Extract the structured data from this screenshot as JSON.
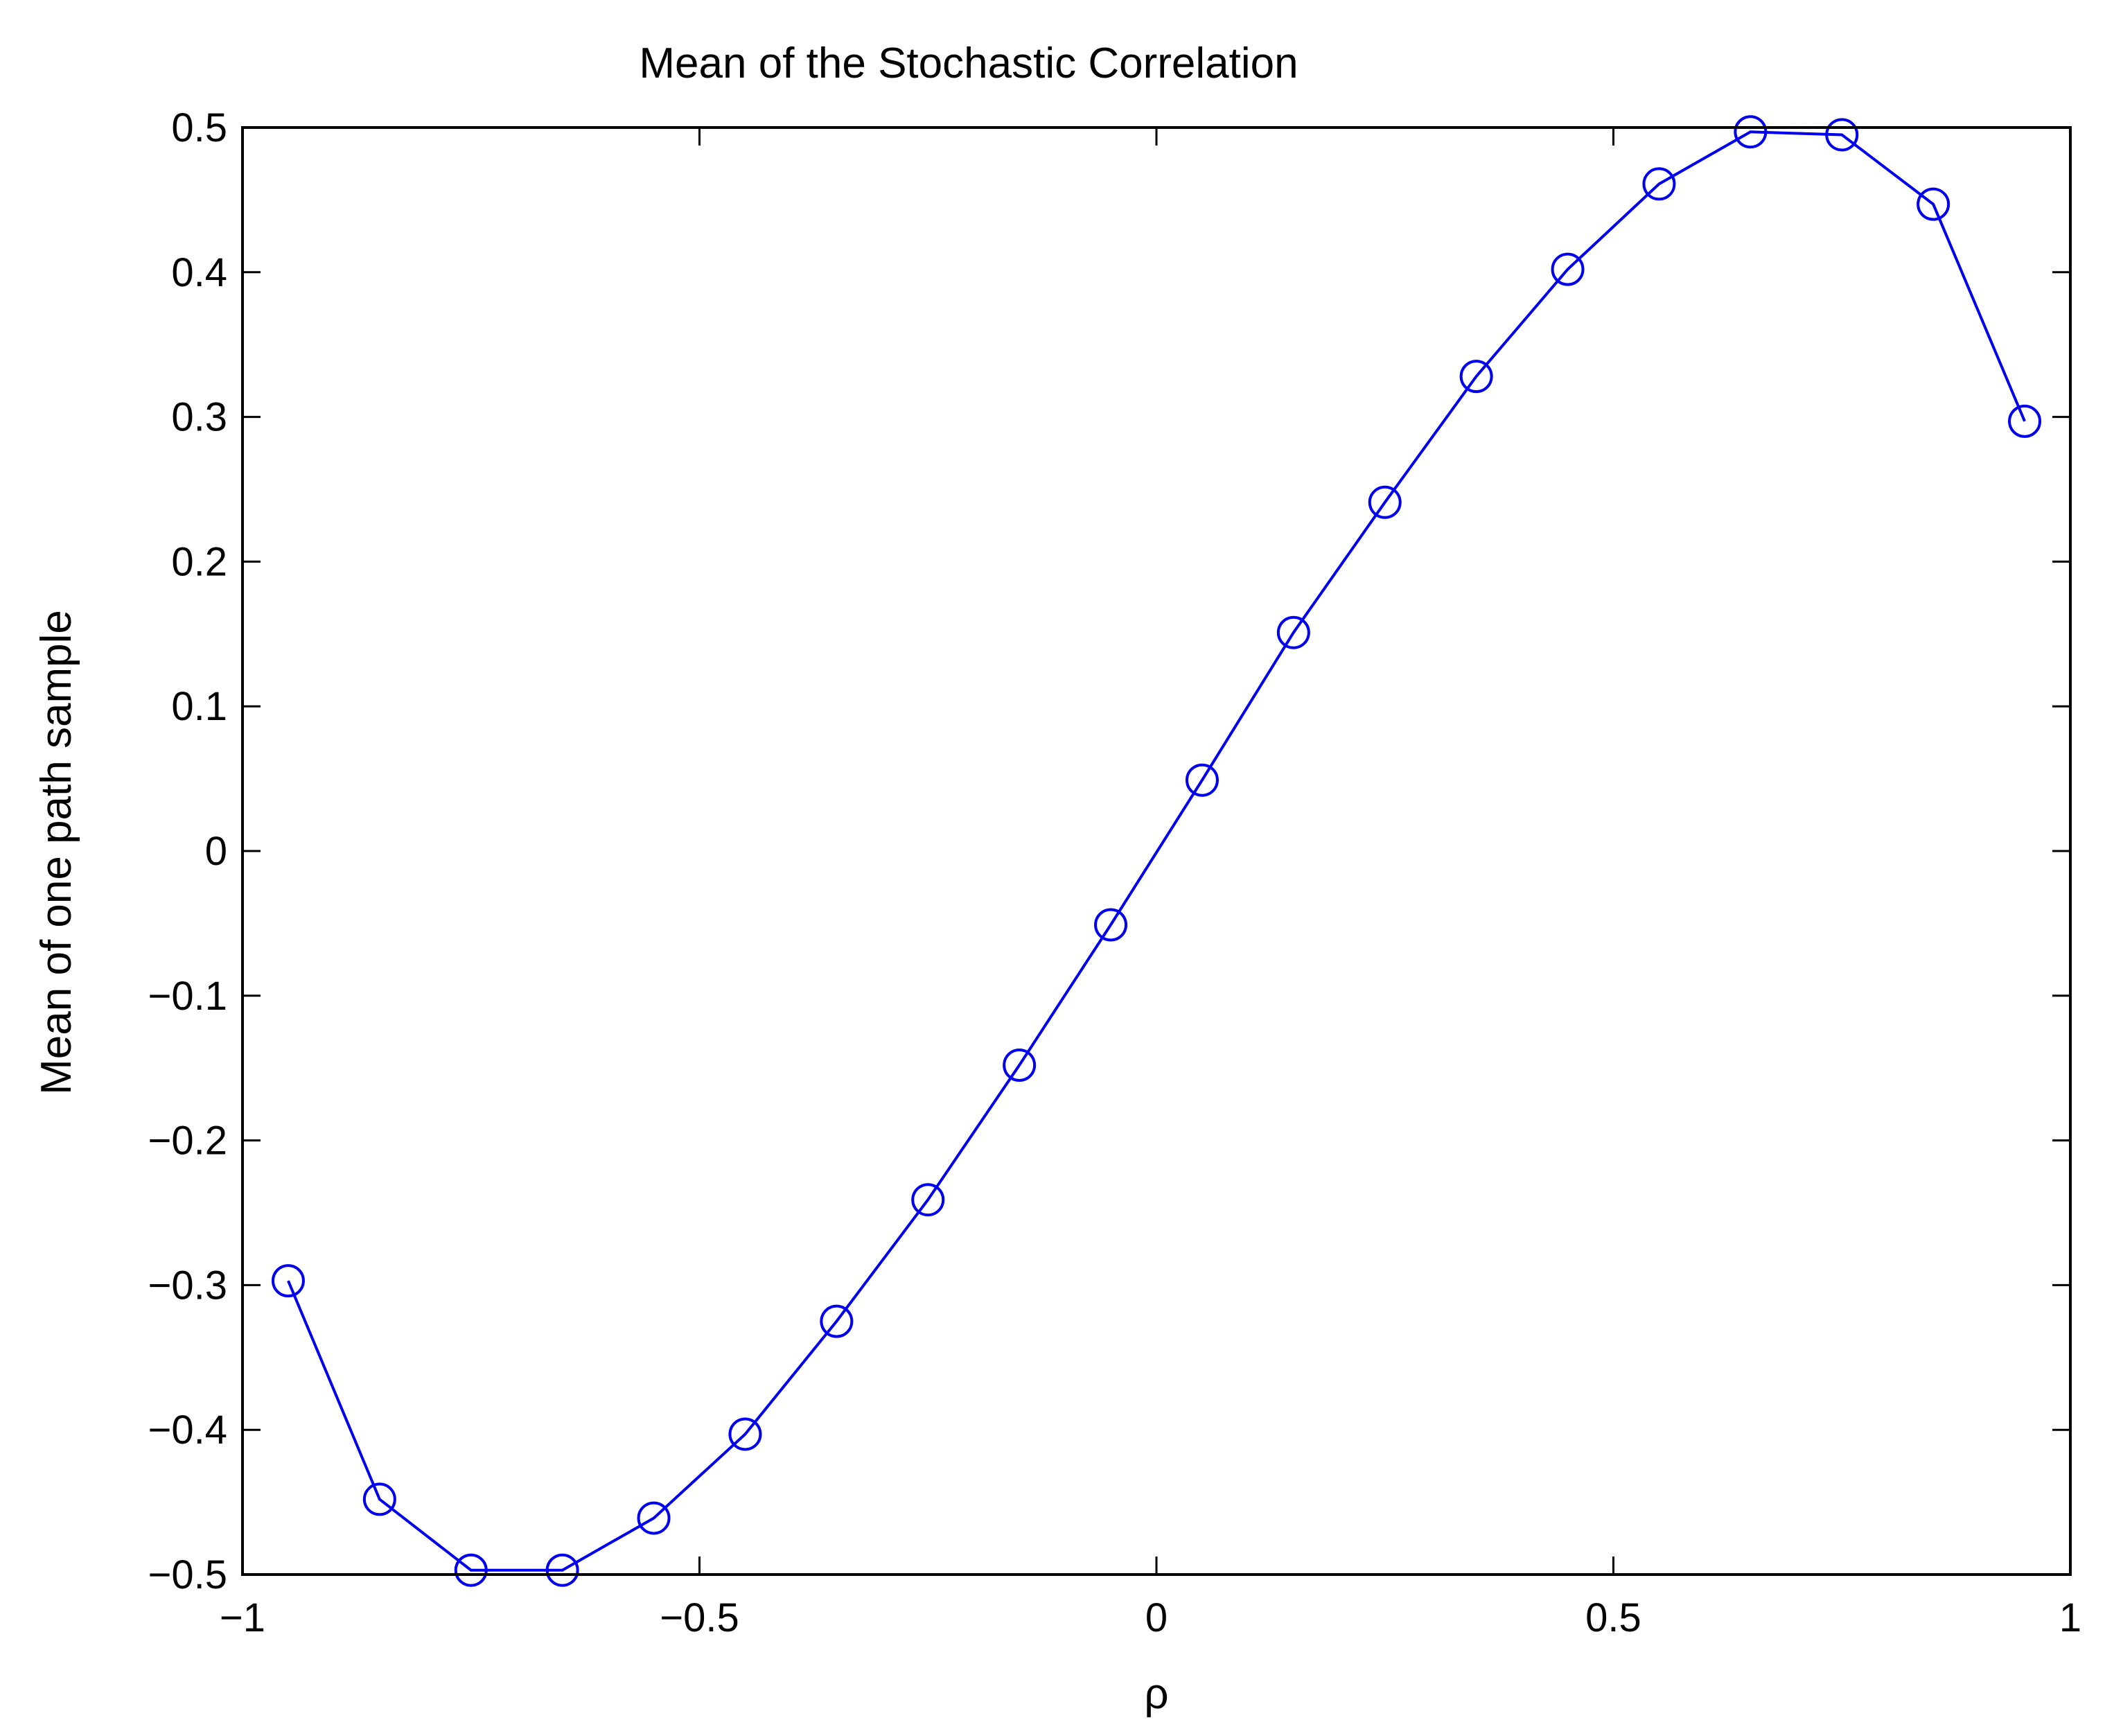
{
  "chart_data": {
    "type": "line",
    "title": "Mean of the Stochastic Correlation",
    "xlabel": "ρ",
    "ylabel": "Mean of one path sample",
    "xlim": [
      -1,
      1
    ],
    "ylim": [
      -0.5,
      0.5
    ],
    "xticks": [
      "−1",
      "−0.5",
      "0",
      "0.5",
      "1"
    ],
    "xtick_values": [
      -1,
      -0.5,
      0,
      0.5,
      1
    ],
    "yticks": [
      "−0.5",
      "−0.4",
      "−0.3",
      "−0.2",
      "−0.1",
      "0",
      "0.1",
      "0.2",
      "0.3",
      "0.4",
      "0.5"
    ],
    "ytick_values": [
      -0.5,
      -0.4,
      -0.3,
      -0.2,
      -0.1,
      0,
      0.1,
      0.2,
      0.3,
      0.4,
      0.5
    ],
    "grid": false,
    "marker": "circle",
    "color": "#0000ee",
    "series": [
      {
        "x": [
          -0.95,
          -0.85,
          -0.75,
          -0.65,
          -0.55,
          -0.45,
          -0.35,
          -0.25,
          -0.15,
          -0.05,
          0.05,
          0.15,
          0.25,
          0.35,
          0.45,
          0.55,
          0.65,
          0.75,
          0.85,
          0.95
        ],
        "y": [
          -0.297,
          -0.448,
          -0.497,
          -0.497,
          -0.461,
          -0.403,
          -0.325,
          -0.241,
          -0.148,
          -0.051,
          0.049,
          0.151,
          0.241,
          0.328,
          0.402,
          0.461,
          0.497,
          0.495,
          0.447,
          0.297
        ]
      }
    ]
  }
}
